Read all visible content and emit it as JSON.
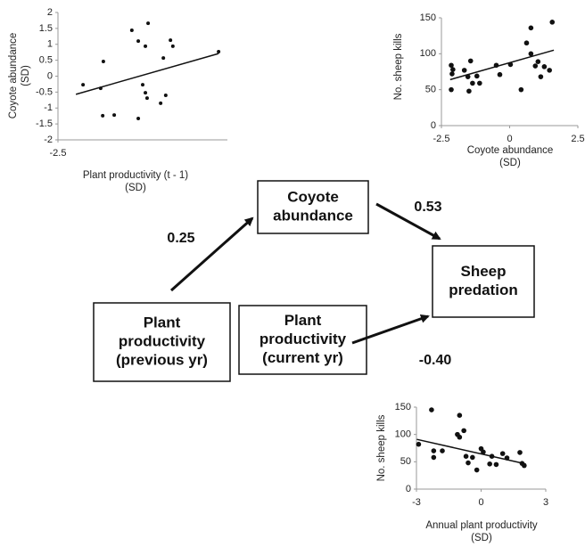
{
  "chart_data": [
    {
      "type": "scatter",
      "x_label": [
        "Plant productivity (t - 1)",
        "(SD)"
      ],
      "y_label": [
        "Coyote abundance",
        "(SD)"
      ],
      "x": [
        -1.76,
        -1.24,
        -1.16,
        -1.18,
        -0.84,
        -0.32,
        -0.13,
        0.16,
        0.08,
        0.0,
        0.13,
        0.08,
        -0.13,
        0.53,
        0.61,
        0.82,
        0.89,
        0.68,
        2.24
      ],
      "values": [
        -0.27,
        -0.38,
        0.46,
        -1.24,
        -1.22,
        1.44,
        1.1,
        1.66,
        0.94,
        -0.27,
        -0.69,
        -0.52,
        -1.33,
        -0.85,
        0.57,
        1.13,
        0.94,
        -0.6,
        0.77
      ],
      "trend": {
        "x": [
          -1.97,
          2.24
        ],
        "values": [
          -0.57,
          0.71
        ]
      },
      "color": "#111111",
      "xlim": [
        -2.5,
        2.5
      ],
      "xticks": [
        -2.5
      ],
      "ylim": [
        -2,
        2
      ],
      "yticks": [
        -2,
        -1.5,
        -1,
        -0.5,
        0,
        0.5,
        1,
        1.5,
        2
      ]
    },
    {
      "type": "scatter",
      "x_label": [
        "Coyote abundance",
        "(SD)"
      ],
      "y_label": [
        "No. sheep kills"
      ],
      "x": [
        -2.14,
        -2.08,
        -2.11,
        -2.14,
        -1.66,
        -1.49,
        -1.53,
        -1.36,
        -1.43,
        -1.2,
        -1.1,
        -0.49,
        -0.36,
        0.03,
        0.42,
        0.62,
        0.78,
        0.78,
        0.94,
        1.27,
        1.14,
        1.46,
        1.56,
        1.04
      ],
      "values": [
        84,
        78,
        72,
        50,
        77,
        48,
        68,
        59,
        90,
        69,
        59,
        84,
        71,
        85,
        50,
        115,
        136,
        100,
        83,
        82,
        68,
        77,
        144,
        89
      ],
      "trend": {
        "x": [
          -2.18,
          1.62
        ],
        "values": [
          64,
          105
        ]
      },
      "color": "#111111",
      "xlim": [
        -2.5,
        2.5
      ],
      "xticks": [
        -2.5,
        0,
        2.5
      ],
      "ylim": [
        0,
        150
      ],
      "yticks": [
        0,
        50,
        100,
        150
      ]
    },
    {
      "type": "scatter",
      "x_label": [
        "Annual plant productivity",
        "(SD)"
      ],
      "y_label": [
        "No. sheep kills"
      ],
      "x": [
        -2.9,
        -2.3,
        -2.2,
        -2.2,
        -1.8,
        -1.1,
        -1.0,
        -1.0,
        -0.8,
        -0.7,
        -0.6,
        -0.4,
        -0.2,
        0.0,
        0.1,
        0.4,
        0.5,
        0.7,
        1.0,
        1.2,
        1.8,
        1.9,
        2.0
      ],
      "values": [
        82,
        145,
        70,
        58,
        70,
        100,
        95,
        135,
        107,
        60,
        48,
        58,
        35,
        74,
        68,
        46,
        60,
        45,
        65,
        57,
        67,
        47,
        43
      ],
      "trend": {
        "x": [
          -2.98,
          2.07
        ],
        "values": [
          91,
          46
        ]
      },
      "color": "#111111",
      "xlim": [
        -3,
        3
      ],
      "xticks": [
        -3,
        0,
        3
      ],
      "ylim": [
        0,
        150
      ],
      "yticks": [
        0,
        50,
        100,
        150
      ]
    }
  ],
  "nodes": [
    {
      "lines": [
        "Coyote",
        "abundance"
      ]
    },
    {
      "lines": [
        "Sheep",
        "predation"
      ]
    },
    {
      "lines": [
        "Plant",
        "productivity",
        "(previous yr)"
      ]
    },
    {
      "lines": [
        "Plant",
        "productivity",
        "(current yr)"
      ]
    }
  ],
  "edges": [
    {
      "label": "0.25"
    },
    {
      "label": "0.53"
    },
    {
      "label": "-0.40"
    }
  ]
}
